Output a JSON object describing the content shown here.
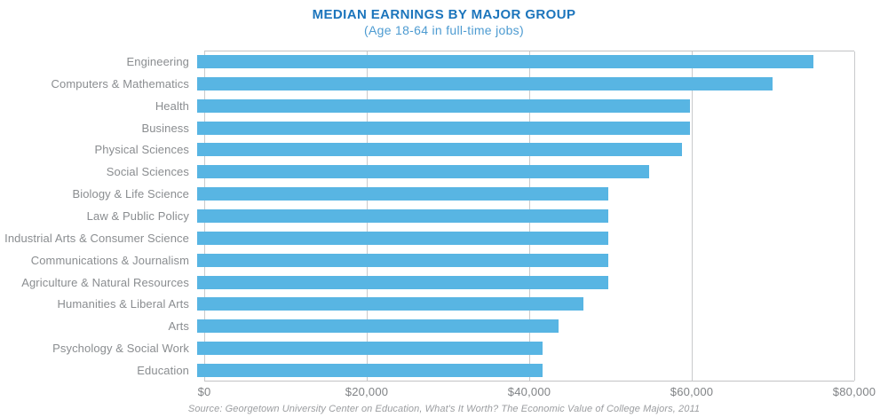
{
  "header": {
    "title": "MEDIAN EARNINGS BY MAJOR GROUP",
    "subtitle": "(Age 18-64 in full-time jobs)"
  },
  "chart_data": {
    "type": "bar",
    "orientation": "horizontal",
    "title": "MEDIAN EARNINGS BY MAJOR GROUP",
    "subtitle": "(Age 18-64 in full-time jobs)",
    "categories": [
      "Engineering",
      "Computers & Mathematics",
      "Health",
      "Business",
      "Physical Sciences",
      "Social Sciences",
      "Biology & Life Science",
      "Law & Public Policy",
      "Industrial Arts & Consumer Science",
      "Communications & Journalism",
      "Agriculture & Natural Resources",
      "Humanities & Liberal Arts",
      "Arts",
      "Psychology & Social Work",
      "Education"
    ],
    "values": [
      75000,
      70000,
      60000,
      60000,
      59000,
      55000,
      50000,
      50000,
      50000,
      50000,
      50000,
      47000,
      44000,
      42000,
      42000
    ],
    "xlabel": "",
    "ylabel": "",
    "xlim": [
      0,
      80000
    ],
    "x_ticks": [
      0,
      20000,
      40000,
      60000,
      80000
    ],
    "x_tick_labels": [
      "$0",
      "$20,000",
      "$40,000",
      "$60,000",
      "$80,000"
    ],
    "grid": true,
    "legend": false,
    "bar_color": "#58B5E3"
  },
  "footer": {
    "source": "Source: Georgetown University Center on Education, What's It Worth? The Economic Value of College Majors, 2011"
  },
  "colors": {
    "title": "#1C75BC",
    "subtitle": "#4D9BD1",
    "bar": "#58B5E3",
    "category_label": "#8A8D90",
    "tick_label": "#808386",
    "gridline": "#C9CACC",
    "source": "#9B9DA0"
  }
}
